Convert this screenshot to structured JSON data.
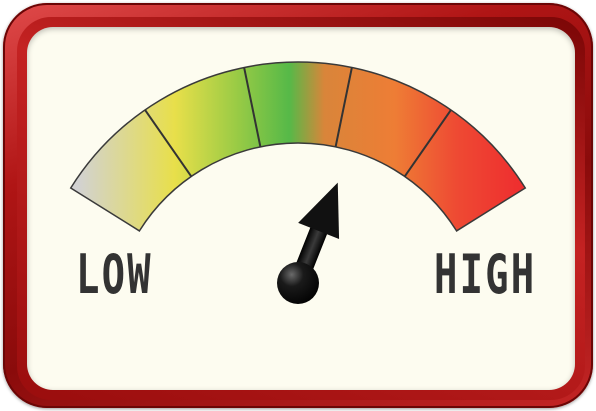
{
  "gauge": {
    "low_label": "LOW",
    "high_label": "HIGH",
    "level": 0.62,
    "segments": 5,
    "colors": {
      "frame": "#b01515",
      "panel": "#fdfcf0",
      "grey": "#cfcfcf",
      "yellow": "#e8df4a",
      "green": "#56b948",
      "orange": "#ee7d35",
      "red": "#ee3030",
      "needle": "#0a0a0a"
    }
  }
}
